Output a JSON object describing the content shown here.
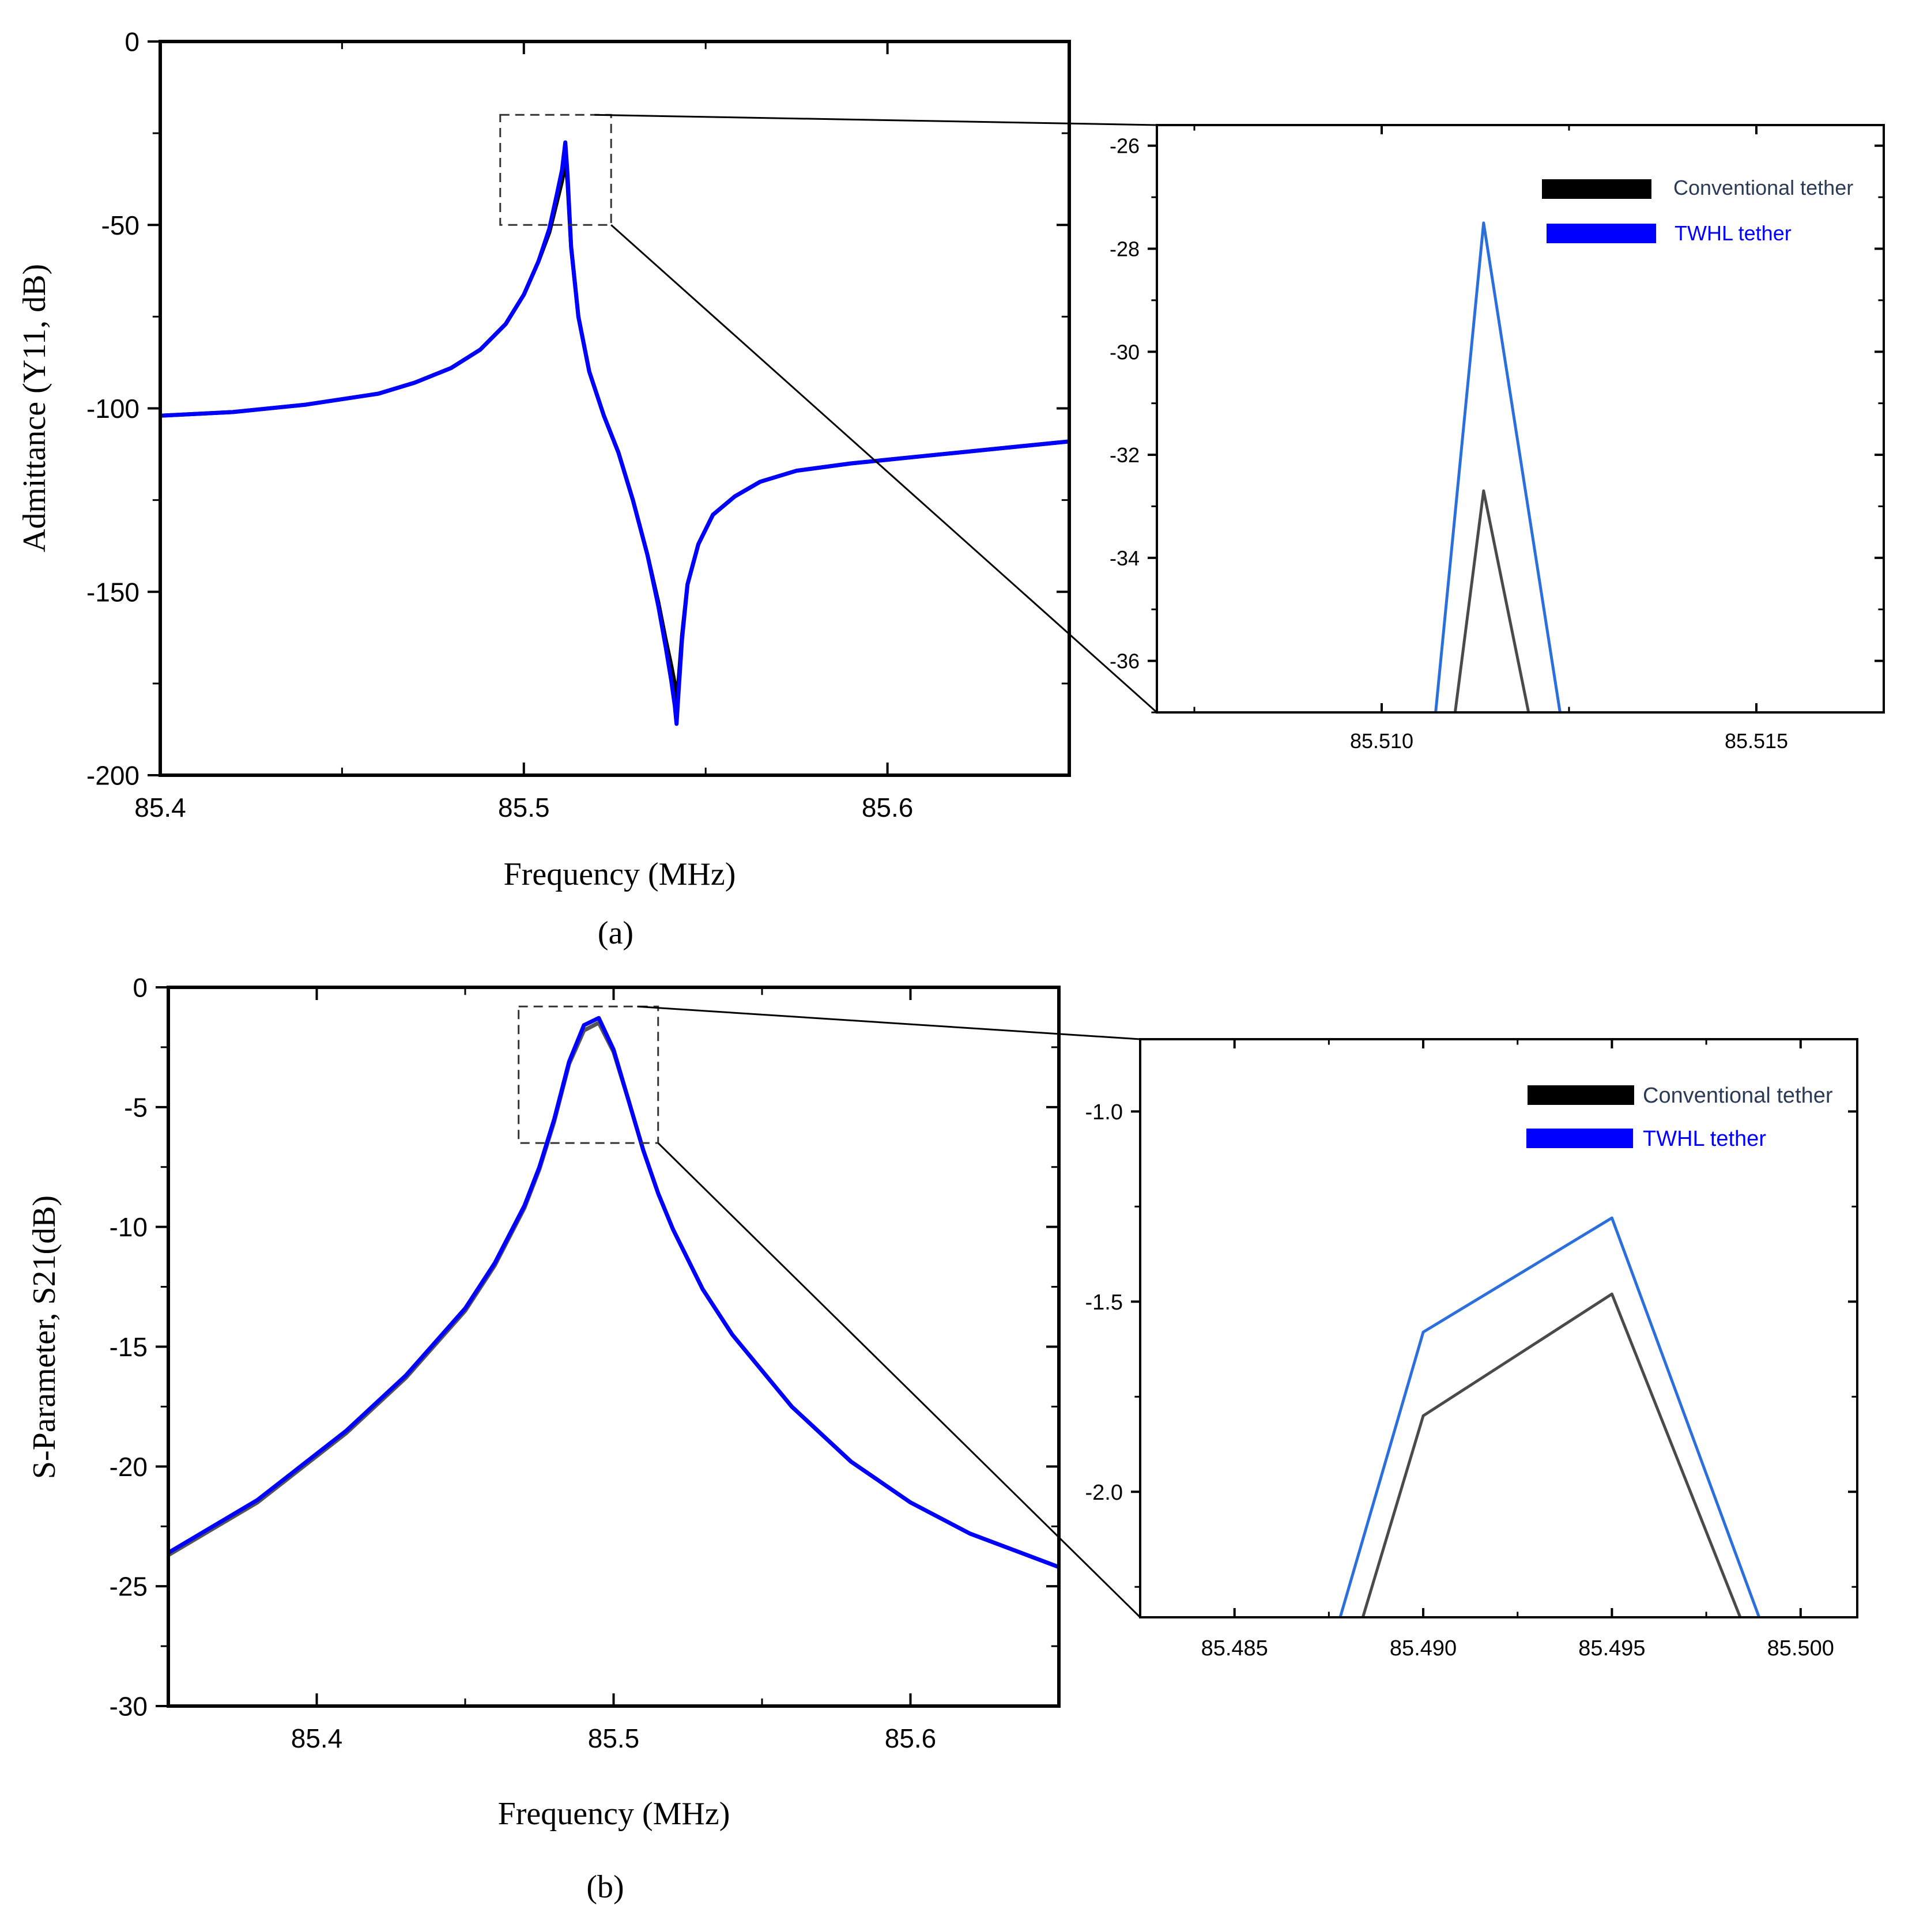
{
  "chart_data": [
    {
      "id": "a_main",
      "type": "line",
      "panel": "(a)",
      "xlabel": "Frequency (MHz)",
      "ylabel": "Admittance (Y11, dB)",
      "xlim": [
        85.4,
        85.65
      ],
      "ylim": [
        -200,
        0
      ],
      "xticks": [
        85.4,
        85.5,
        85.6
      ],
      "xtick_labels": [
        "85.4",
        "85.5",
        "85.6"
      ],
      "yticks": [
        0,
        -50,
        -100,
        -150,
        -200
      ],
      "ytick_labels": [
        "0",
        "-50",
        "-100",
        "-150",
        "-200"
      ],
      "grid": false,
      "zoom_box": {
        "x": [
          85.4935,
          85.524
        ],
        "y": [
          -50,
          -20
        ]
      },
      "series": [
        {
          "name": "Conventional tether",
          "color": "#000000",
          "x": [
            85.4,
            85.42,
            85.44,
            85.46,
            85.47,
            85.48,
            85.488,
            85.495,
            85.5,
            85.504,
            85.507,
            85.509,
            85.5105,
            85.5114,
            85.512,
            85.513,
            85.515,
            85.518,
            85.522,
            85.526,
            85.53,
            85.534,
            85.537,
            85.539,
            85.5405,
            85.5415,
            85.542,
            85.5425,
            85.5435,
            85.545,
            85.548,
            85.552,
            85.558,
            85.565,
            85.575,
            85.59,
            85.61,
            85.63,
            85.65
          ],
          "y": [
            -102,
            -101,
            -99,
            -96,
            -93,
            -89,
            -84,
            -77,
            -69,
            -60,
            -52,
            -44,
            -38,
            -33,
            -38,
            -56,
            -75,
            -90,
            -102,
            -112,
            -125,
            -140,
            -153,
            -163,
            -170,
            -175,
            -180,
            -175,
            -162,
            -148,
            -137,
            -129,
            -124,
            -120,
            -117,
            -115,
            -113,
            -111,
            -109
          ]
        },
        {
          "name": "TWHL tether",
          "color": "#0000ff",
          "x": [
            85.4,
            85.42,
            85.44,
            85.46,
            85.47,
            85.48,
            85.488,
            85.495,
            85.5,
            85.504,
            85.507,
            85.509,
            85.5105,
            85.5114,
            85.512,
            85.513,
            85.515,
            85.518,
            85.522,
            85.526,
            85.53,
            85.534,
            85.537,
            85.539,
            85.5405,
            85.5415,
            85.542,
            85.5425,
            85.5435,
            85.545,
            85.548,
            85.552,
            85.558,
            85.565,
            85.575,
            85.59,
            85.61,
            85.63,
            85.65
          ],
          "y": [
            -102,
            -101,
            -99,
            -96,
            -93,
            -89,
            -84,
            -77,
            -69,
            -60,
            -51,
            -42,
            -35,
            -27.5,
            -36,
            -56,
            -75,
            -90,
            -102,
            -112,
            -125,
            -140,
            -154,
            -165,
            -174,
            -181,
            -186,
            -178,
            -163,
            -148,
            -137,
            -129,
            -124,
            -120,
            -117,
            -115,
            -113,
            -111,
            -109
          ]
        }
      ]
    },
    {
      "id": "a_zoom",
      "type": "line",
      "panel": "(a) inset",
      "xlabel": "",
      "ylabel": "",
      "xlim": [
        85.507,
        85.5167
      ],
      "ylim": [
        -37,
        -25.6
      ],
      "xticks": [
        85.51,
        85.515
      ],
      "xtick_labels": [
        "85.510",
        "85.515"
      ],
      "yticks": [
        -26,
        -28,
        -30,
        -32,
        -34,
        -36
      ],
      "ytick_labels": [
        "-26",
        "-28",
        "-30",
        "-32",
        "-34",
        "-36"
      ],
      "grid": false,
      "legend_position": "top-right",
      "series": [
        {
          "name": "Conventional tether",
          "color": "#4a4a4a",
          "x": [
            85.51098,
            85.51136,
            85.51196
          ],
          "y": [
            -37,
            -32.7,
            -37
          ]
        },
        {
          "name": "TWHL tether",
          "color": "#2a6fdb",
          "x": [
            85.51072,
            85.51136,
            85.51238
          ],
          "y": [
            -37,
            -27.5,
            -37
          ]
        }
      ]
    },
    {
      "id": "b_main",
      "type": "line",
      "panel": "(b)",
      "xlabel": "Frequency (MHz)",
      "ylabel": "S-Parameter, S21(dB)",
      "xlim": [
        85.35,
        85.65
      ],
      "ylim": [
        -30,
        0
      ],
      "xticks": [
        85.4,
        85.5,
        85.6
      ],
      "xtick_labels": [
        "85.4",
        "85.5",
        "85.6"
      ],
      "yticks": [
        0,
        -5,
        -10,
        -15,
        -20,
        -25,
        -30
      ],
      "ytick_labels": [
        "0",
        "-5",
        "-10",
        "-15",
        "-20",
        "-25",
        "-30"
      ],
      "grid": false,
      "zoom_box": {
        "x": [
          85.468,
          85.515
        ],
        "y": [
          -6.5,
          -0.8
        ]
      },
      "series": [
        {
          "name": "Conventional tether",
          "color": "#555555",
          "x": [
            85.35,
            85.38,
            85.41,
            85.43,
            85.45,
            85.46,
            85.47,
            85.475,
            85.48,
            85.485,
            85.49,
            85.495,
            85.5,
            85.505,
            85.51,
            85.515,
            85.52,
            85.53,
            85.54,
            85.56,
            85.58,
            85.6,
            85.62,
            85.65
          ],
          "y": [
            -23.7,
            -21.5,
            -18.6,
            -16.3,
            -13.5,
            -11.6,
            -9.2,
            -7.6,
            -5.6,
            -3.2,
            -1.8,
            -1.48,
            -2.7,
            -4.7,
            -6.8,
            -8.6,
            -10.1,
            -12.6,
            -14.5,
            -17.5,
            -19.8,
            -21.5,
            -22.8,
            -24.2
          ]
        },
        {
          "name": "TWHL tether",
          "color": "#0000ff",
          "x": [
            85.35,
            85.38,
            85.41,
            85.43,
            85.45,
            85.46,
            85.47,
            85.475,
            85.48,
            85.485,
            85.49,
            85.495,
            85.5,
            85.505,
            85.51,
            85.515,
            85.52,
            85.53,
            85.54,
            85.56,
            85.58,
            85.6,
            85.62,
            85.65
          ],
          "y": [
            -23.6,
            -21.4,
            -18.5,
            -16.2,
            -13.4,
            -11.5,
            -9.1,
            -7.5,
            -5.5,
            -3.1,
            -1.58,
            -1.28,
            -2.6,
            -4.7,
            -6.8,
            -8.6,
            -10.1,
            -12.6,
            -14.5,
            -17.5,
            -19.8,
            -21.5,
            -22.8,
            -24.2
          ]
        }
      ]
    },
    {
      "id": "b_zoom",
      "type": "line",
      "panel": "(b) inset",
      "xlabel": "",
      "ylabel": "",
      "xlim": [
        85.4825,
        85.5015
      ],
      "ylim": [
        -2.33,
        -0.81
      ],
      "xticks": [
        85.485,
        85.49,
        85.495,
        85.5
      ],
      "xtick_labels": [
        "85.485",
        "85.490",
        "85.495",
        "85.500"
      ],
      "yticks": [
        -1.0,
        -1.5,
        -2.0
      ],
      "ytick_labels": [
        "-1.0",
        "-1.5",
        "-2.0"
      ],
      "grid": false,
      "legend_position": "top-right",
      "series": [
        {
          "name": "Conventional tether",
          "color": "#4a4a4a",
          "x": [
            85.4884,
            85.49,
            85.495,
            85.4984
          ],
          "y": [
            -2.33,
            -1.8,
            -1.48,
            -2.33
          ]
        },
        {
          "name": "TWHL tether",
          "color": "#2a6fdb",
          "x": [
            85.4878,
            85.49,
            85.495,
            85.4989
          ],
          "y": [
            -2.33,
            -1.58,
            -1.28,
            -2.33
          ]
        }
      ]
    }
  ],
  "legend_a": {
    "conventional_label": "Conventional tether",
    "twhl_label": "TWHL tether",
    "conventional_swatch": "#000000",
    "twhl_swatch": "#0000ff",
    "conventional_text_color": "#2b3a55",
    "twhl_text_color": "#0000ff"
  },
  "legend_b": {
    "conventional_label": "Conventional tether",
    "twhl_label": "TWHL tether",
    "conventional_swatch": "#000000",
    "twhl_swatch": "#0000ff",
    "conventional_text_color": "#2b3a55",
    "twhl_text_color": "#0000ff"
  },
  "captions": {
    "a": "(a)",
    "b": "(b)"
  }
}
